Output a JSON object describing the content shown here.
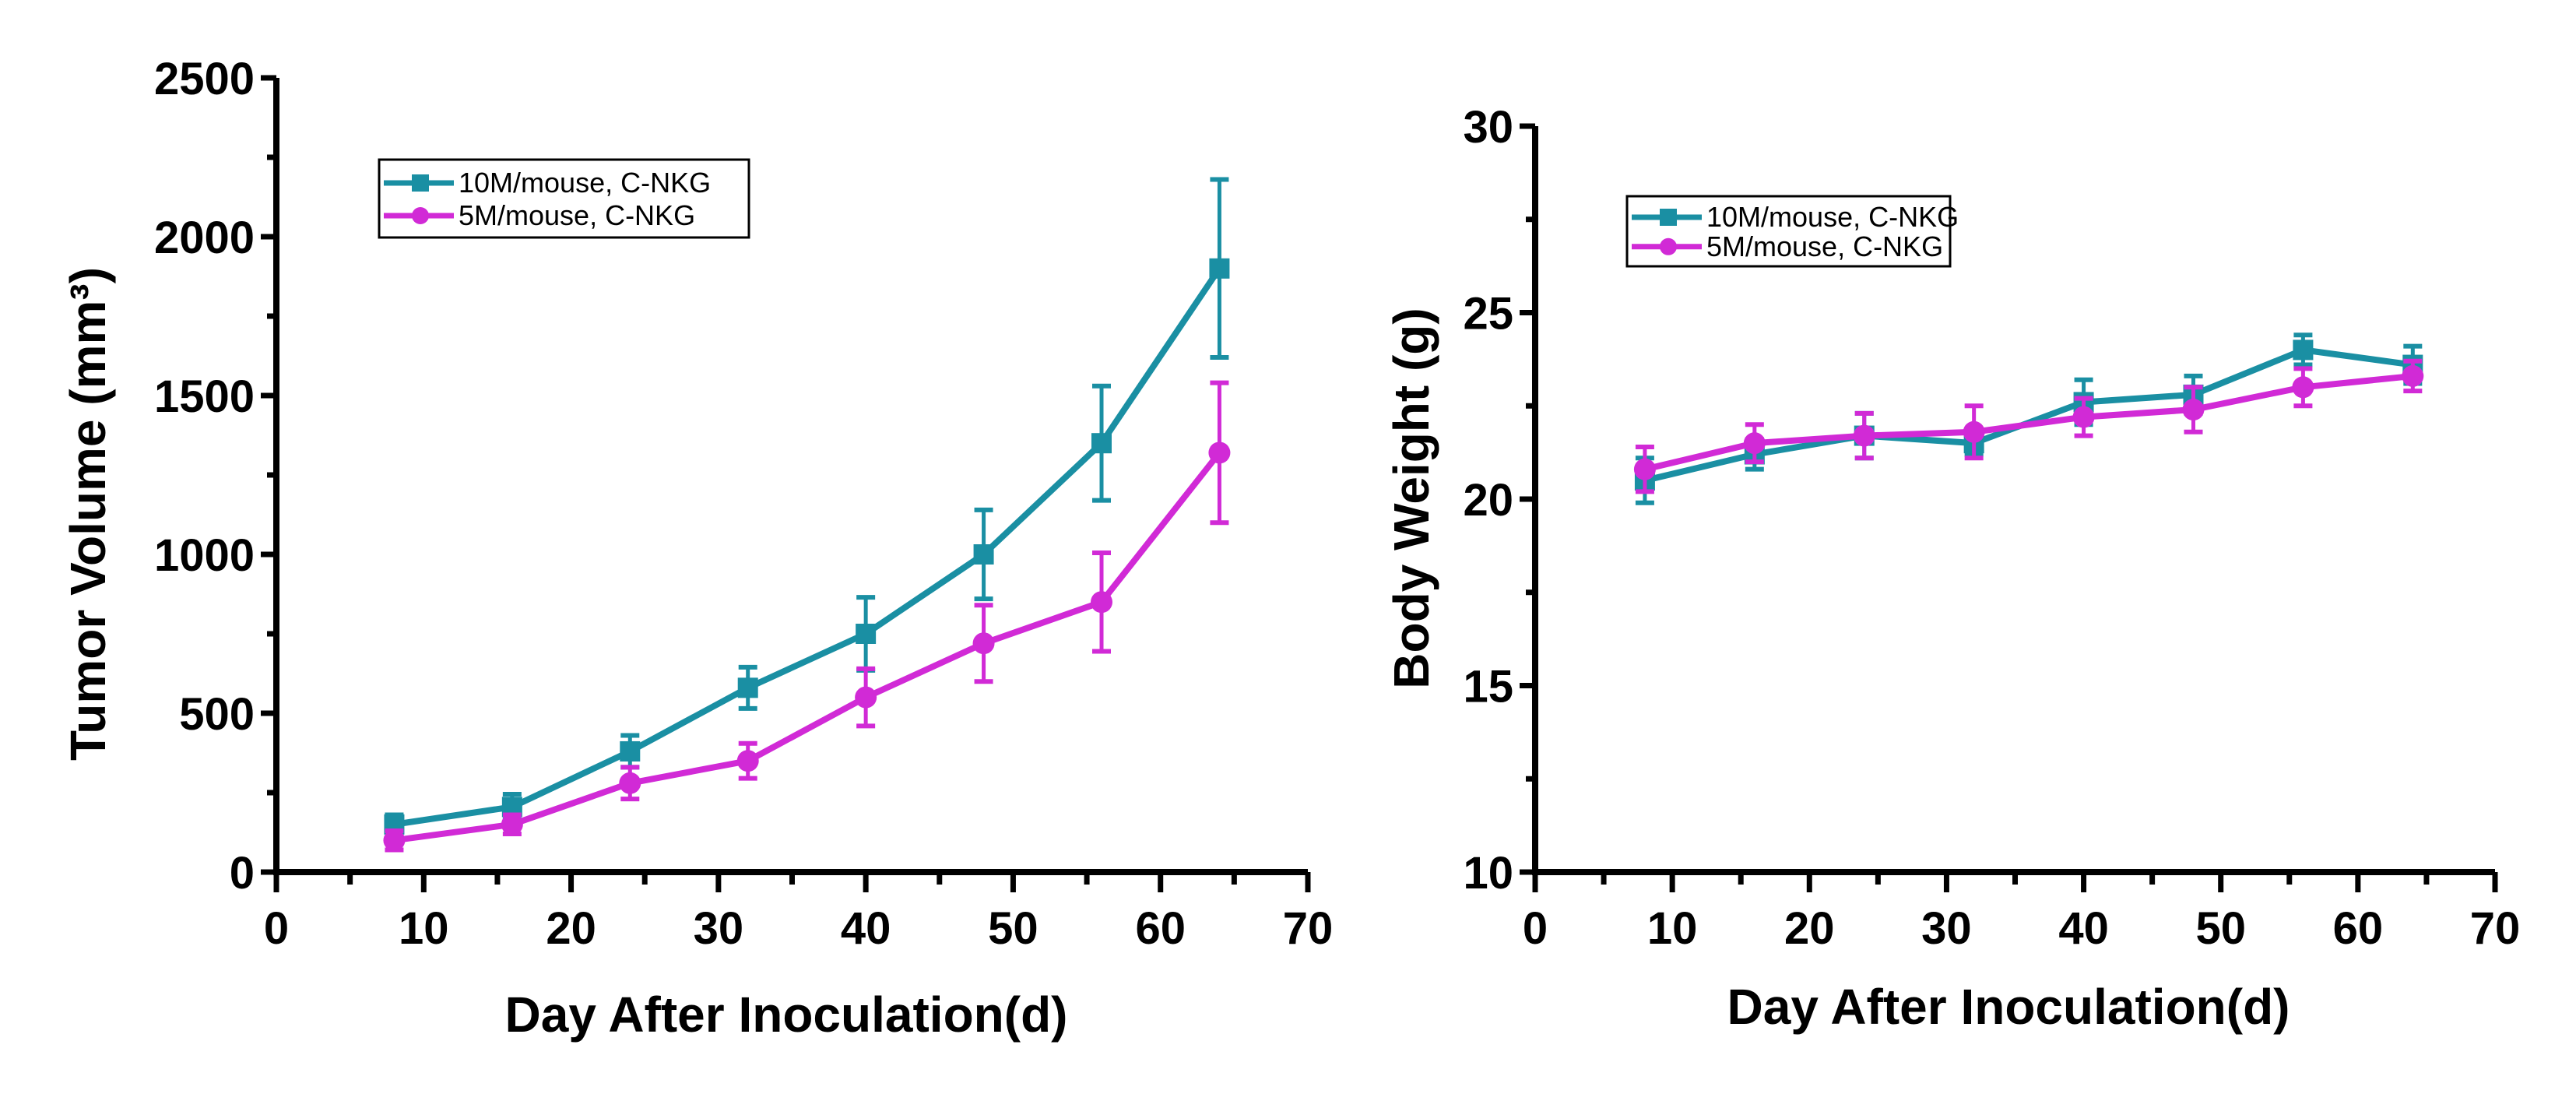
{
  "colors": {
    "series_10M": "#1a8fa3",
    "series_5M": "#d12ad6",
    "axis": "#000000"
  },
  "chart_data": [
    {
      "type": "line",
      "id": "tumor",
      "title": "",
      "xlabel": "Day After Inoculation(d)",
      "ylabel": "Tumor Volume (mm³)",
      "xlim": [
        0,
        70
      ],
      "ylim": [
        0,
        2500
      ],
      "xticks": [
        0,
        10,
        20,
        30,
        40,
        50,
        60,
        70
      ],
      "yticks": [
        0,
        500,
        1000,
        1500,
        2000,
        2500
      ],
      "grid": false,
      "legend_position": "top-left",
      "x": [
        8,
        16,
        24,
        32,
        40,
        48,
        56,
        64
      ],
      "series": [
        {
          "name": "10M/mouse, C-NKG",
          "marker": "square",
          "color": "#1a8fa3",
          "values": [
            150,
            205,
            380,
            580,
            750,
            1000,
            1350,
            1900
          ],
          "errors": [
            30,
            40,
            50,
            65,
            115,
            140,
            180,
            280
          ]
        },
        {
          "name": "5M/mouse, C-NKG",
          "marker": "circle",
          "color": "#d12ad6",
          "values": [
            100,
            150,
            280,
            350,
            550,
            720,
            850,
            1320
          ],
          "errors": [
            30,
            30,
            50,
            55,
            90,
            120,
            155,
            220
          ]
        }
      ]
    },
    {
      "type": "line",
      "id": "weight",
      "title": "",
      "xlabel": "Day After Inoculation(d)",
      "ylabel": "Body Weight (g)",
      "xlim": [
        0,
        70
      ],
      "ylim": [
        10,
        30
      ],
      "xticks": [
        0,
        10,
        20,
        30,
        40,
        50,
        60,
        70
      ],
      "yticks": [
        10,
        15,
        20,
        25,
        30
      ],
      "grid": false,
      "legend_position": "top-left",
      "x": [
        8,
        16,
        24,
        32,
        40,
        48,
        56,
        64
      ],
      "series": [
        {
          "name": "10M/mouse, C-NKG",
          "marker": "square",
          "color": "#1a8fa3",
          "values": [
            20.5,
            21.2,
            21.7,
            21.5,
            22.6,
            22.8,
            24.0,
            23.6
          ],
          "errors": [
            0.6,
            0.4,
            0.6,
            0.3,
            0.6,
            0.5,
            0.4,
            0.5
          ]
        },
        {
          "name": "5M/mouse, C-NKG",
          "marker": "circle",
          "color": "#d12ad6",
          "values": [
            20.8,
            21.5,
            21.7,
            21.8,
            22.2,
            22.4,
            23.0,
            23.3
          ],
          "errors": [
            0.6,
            0.5,
            0.6,
            0.7,
            0.5,
            0.6,
            0.5,
            0.4
          ]
        }
      ]
    }
  ]
}
